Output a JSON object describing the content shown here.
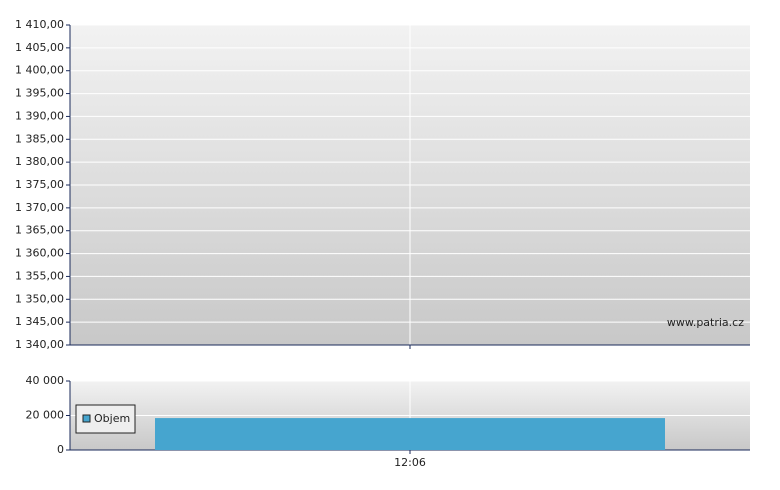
{
  "chart_data": [
    {
      "type": "line",
      "watermark": "www.patria.cz",
      "grid": true,
      "ylim": [
        1340,
        1410
      ],
      "yticks": [
        {
          "value": 1340,
          "label": "1 340,00"
        },
        {
          "value": 1345,
          "label": "1 345,00"
        },
        {
          "value": 1350,
          "label": "1 350,00"
        },
        {
          "value": 1355,
          "label": "1 355,00"
        },
        {
          "value": 1360,
          "label": "1 360,00"
        },
        {
          "value": 1365,
          "label": "1 365,00"
        },
        {
          "value": 1370,
          "label": "1 370,00"
        },
        {
          "value": 1375,
          "label": "1 375,00"
        },
        {
          "value": 1380,
          "label": "1 380,00"
        },
        {
          "value": 1385,
          "label": "1 385,00"
        },
        {
          "value": 1390,
          "label": "1 390,00"
        },
        {
          "value": 1395,
          "label": "1 395,00"
        },
        {
          "value": 1400,
          "label": "1 400,00"
        },
        {
          "value": 1405,
          "label": "1 405,00"
        },
        {
          "value": 1410,
          "label": "1 410,00"
        }
      ]
    },
    {
      "type": "bar",
      "grid": true,
      "legend": "upper left",
      "categories": [
        "12:06"
      ],
      "series": [
        {
          "name": "Objem",
          "color": "#46a5cf",
          "values": [
            18500
          ]
        }
      ],
      "ylim": [
        0,
        40000
      ],
      "yticks": [
        0,
        {
          "value": 20000,
          "label": "20 000"
        },
        {
          "value": 40000,
          "label": "40 000"
        }
      ]
    }
  ]
}
